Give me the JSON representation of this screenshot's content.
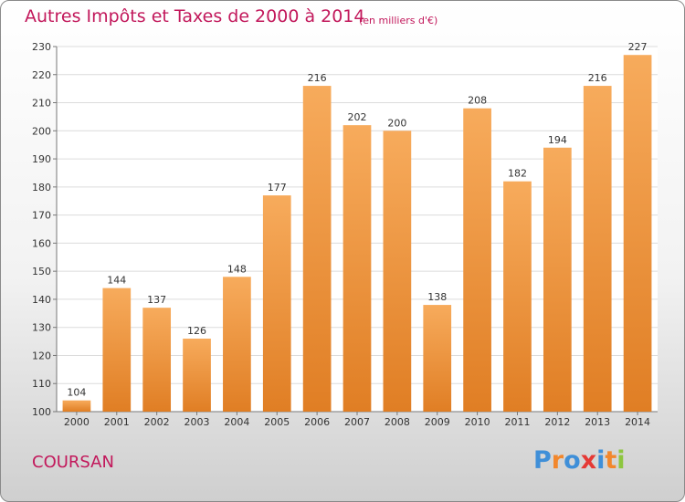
{
  "header": {
    "title": "Autres Impôts et Taxes de 2000 à 2014",
    "subtitle": "(en milliers d'€)"
  },
  "footer": {
    "place": "COURSAN",
    "logo_text": "Proxiti",
    "logo_letter_colors": [
      "#3f8fd8",
      "#f2872c",
      "#3f8fd8",
      "#e53935",
      "#3f8fd8",
      "#f2872c",
      "#8dc63f"
    ]
  },
  "colors": {
    "bar_light": "#f7ab5c",
    "bar_dark": "#e07e24",
    "title": "#c2185b"
  },
  "chart_data": {
    "type": "bar",
    "title": "Autres Impôts et Taxes de 2000 à 2014",
    "subtitle": "(en milliers d'€)",
    "xlabel": "",
    "ylabel": "",
    "categories": [
      "2000",
      "2001",
      "2002",
      "2003",
      "2004",
      "2005",
      "2006",
      "2007",
      "2008",
      "2009",
      "2010",
      "2011",
      "2012",
      "2013",
      "2014"
    ],
    "values": [
      104,
      144,
      137,
      126,
      148,
      177,
      216,
      202,
      200,
      138,
      208,
      182,
      194,
      216,
      227
    ],
    "ylim": [
      100,
      230
    ],
    "yticks": [
      100,
      110,
      120,
      130,
      140,
      150,
      160,
      170,
      180,
      190,
      200,
      210,
      220,
      230
    ],
    "grid": true,
    "data_labels": true
  }
}
